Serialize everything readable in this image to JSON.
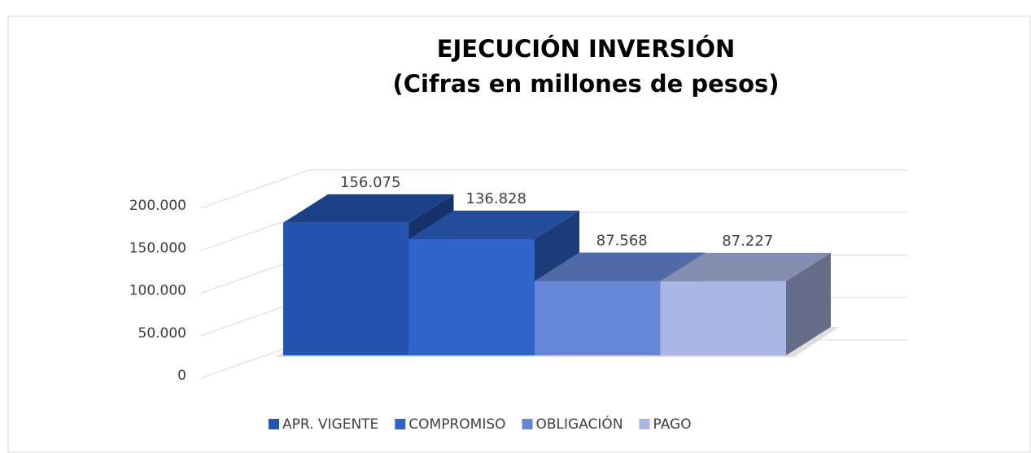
{
  "chart_data": {
    "type": "bar3d",
    "title": "EJECUCIÓN INVERSIÓN",
    "subtitle": "(Cifras en millones de pesos)",
    "series": [
      {
        "name": "APR. VIGENTE",
        "color": "#2553b0",
        "values": [
          156075
        ],
        "value_labels": [
          "156.075"
        ]
      },
      {
        "name": "COMPROMISO",
        "color": "#2e63c9",
        "values": [
          136828
        ],
        "value_labels": [
          "136.828"
        ]
      },
      {
        "name": "OBLIGACIÓN",
        "color": "#6786d6",
        "values": [
          87568
        ],
        "value_labels": [
          "87.568"
        ]
      },
      {
        "name": "PAGO",
        "color": "#a8b6e4",
        "values": [
          87227
        ],
        "value_labels": [
          "87.227"
        ]
      }
    ],
    "ylim": [
      0,
      200000
    ],
    "yticks": [
      0,
      {
        "value": 50000,
        "label": "50.000"
      },
      {
        "value": 100000,
        "label": "100.000"
      },
      {
        "value": 150000,
        "label": "150.000"
      },
      {
        "value": 200000,
        "label": "200.000"
      }
    ],
    "grid": true,
    "legend": "bottom"
  }
}
